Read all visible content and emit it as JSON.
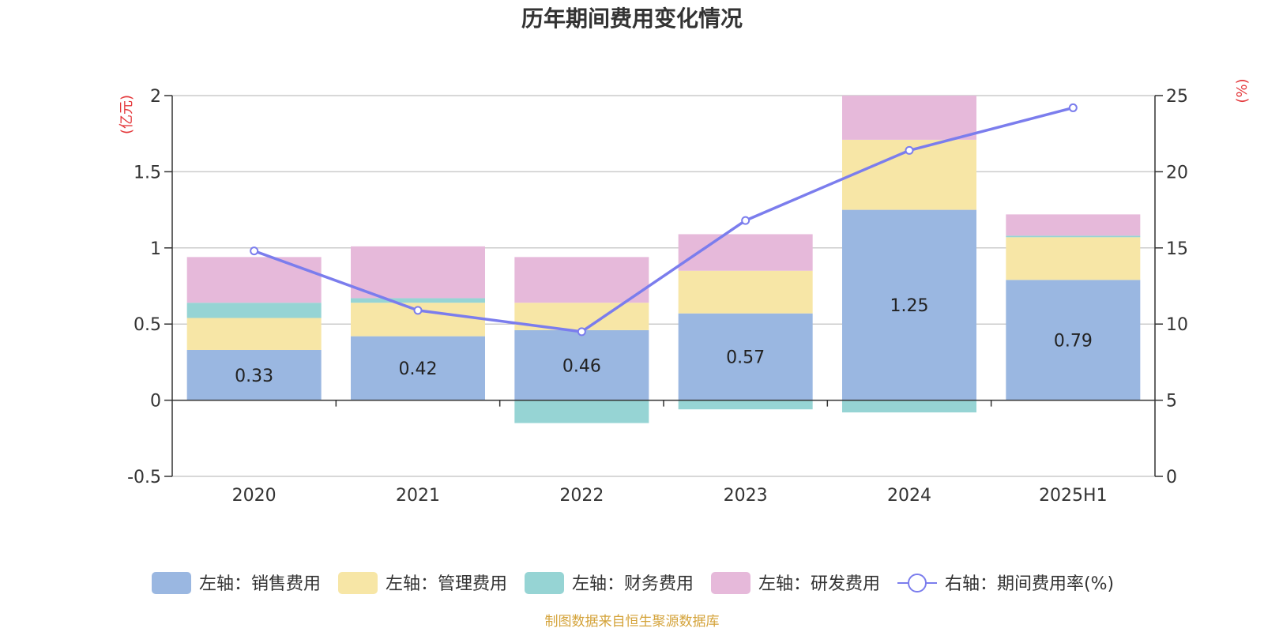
{
  "chart_data": {
    "type": "bar",
    "title": "历年期间费用变化情况",
    "categories": [
      "2020",
      "2021",
      "2022",
      "2023",
      "2024",
      "2025H1"
    ],
    "left_axis": {
      "unit": "(亿元)",
      "ylim": [
        -0.5,
        2
      ],
      "ticks": [
        -0.5,
        0,
        0.5,
        1,
        1.5,
        2
      ],
      "tick_labels": [
        "-0.5",
        "0",
        "0.5",
        "1",
        "1.5",
        "2"
      ]
    },
    "right_axis": {
      "unit": "(%)",
      "ylim": [
        0,
        25
      ],
      "ticks": [
        0,
        5,
        10,
        15,
        20,
        25
      ],
      "tick_labels": [
        "0",
        "5",
        "10",
        "15",
        "20",
        "25"
      ]
    },
    "grid": true,
    "series": [
      {
        "name": "左轴：销售费用",
        "type": "bar",
        "axis": "left",
        "color": "#9ab7e1",
        "values": [
          0.33,
          0.42,
          0.46,
          0.57,
          1.25,
          0.79
        ],
        "data_labels": [
          "0.33",
          "0.42",
          "0.46",
          "0.57",
          "1.25",
          "0.79"
        ]
      },
      {
        "name": "左轴：管理费用",
        "type": "bar",
        "axis": "left",
        "color": "#f7e6a6",
        "values": [
          0.21,
          0.22,
          0.18,
          0.28,
          0.46,
          0.28
        ]
      },
      {
        "name": "左轴：财务费用",
        "type": "bar",
        "axis": "left",
        "color": "#96d4d4",
        "values": [
          0.1,
          0.03,
          -0.15,
          -0.06,
          -0.08,
          0.01
        ]
      },
      {
        "name": "左轴：研发费用",
        "type": "bar",
        "axis": "left",
        "color": "#e6b9da",
        "values": [
          0.3,
          0.34,
          0.3,
          0.24,
          0.29,
          0.14
        ]
      },
      {
        "name": "右轴：期间费用率(%)",
        "type": "line",
        "axis": "right",
        "color": "#7b7ded",
        "values": [
          14.8,
          10.9,
          9.5,
          16.8,
          21.4,
          24.2
        ]
      }
    ],
    "legend_position": "bottom",
    "source_note": "制图数据来自恒生聚源数据库"
  }
}
